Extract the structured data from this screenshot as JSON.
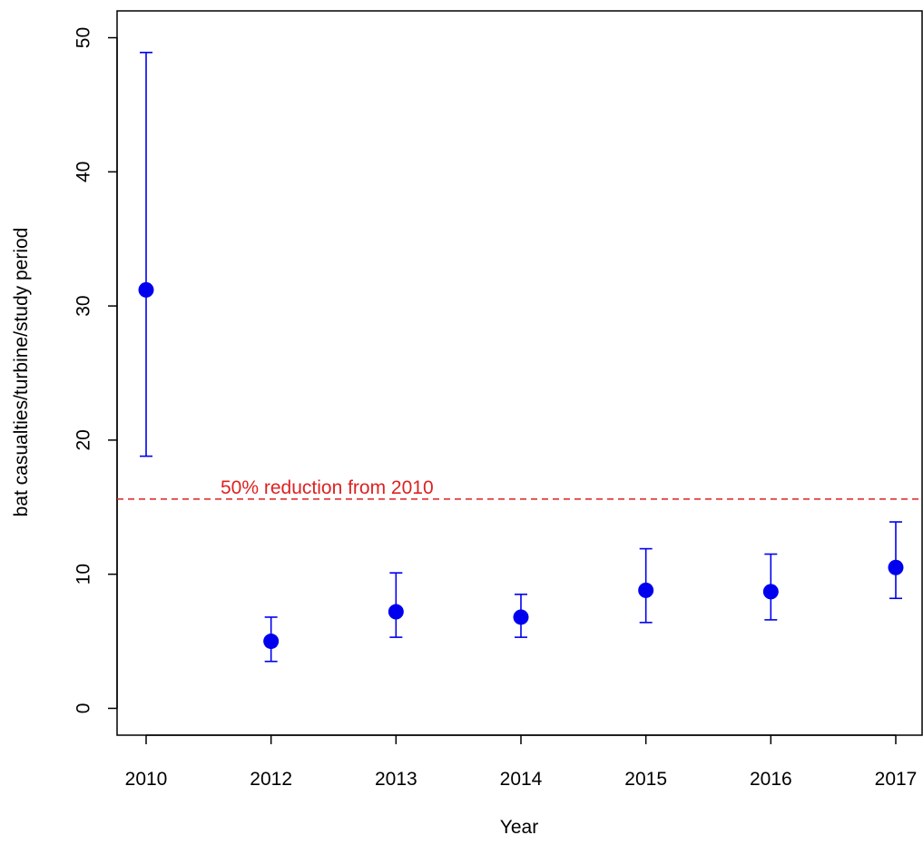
{
  "chart_data": {
    "type": "scatter",
    "title": "",
    "xlabel": "Year",
    "ylabel": "bat casualties/turbine/study period",
    "categories": [
      "2010",
      "2012",
      "2013",
      "2014",
      "2015",
      "2016",
      "2017"
    ],
    "series": [
      {
        "values": [
          31.2,
          5.0,
          7.2,
          6.8,
          8.8,
          8.7,
          10.5
        ],
        "lower": [
          18.8,
          3.5,
          5.3,
          5.3,
          6.4,
          6.6,
          8.2
        ],
        "upper": [
          48.9,
          6.8,
          10.1,
          8.5,
          11.9,
          11.5,
          13.9
        ],
        "color": "#0000ee"
      }
    ],
    "ylim": [
      -2,
      52
    ],
    "yticks": [
      0,
      10,
      20,
      30,
      40,
      50
    ],
    "grid": false,
    "reference_line": {
      "value": 15.6,
      "label": "50% reduction from 2010",
      "color": "#dd2222",
      "style": "dashed"
    }
  }
}
